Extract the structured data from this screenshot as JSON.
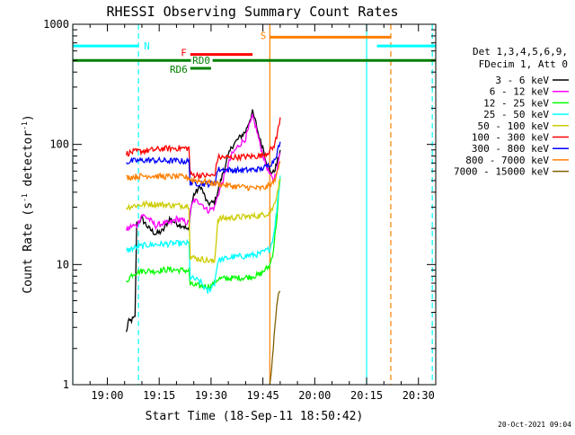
{
  "chart_data": {
    "type": "line",
    "title": "RHESSI Observing Summary Count Rates",
    "xlabel": "Start Time (18-Sep-11 18:50:42)",
    "ylabel_main": "Count Rate (s",
    "ylabel_sup1": "-1",
    "ylabel_mid": " detector",
    "ylabel_sup2": "-1",
    "ylabel_end": ")",
    "y_scale": "log",
    "ylim": [
      1,
      1000
    ],
    "xlim_minutes": [
      -10,
      95
    ],
    "x_ticks": [
      {
        "label": "19:00",
        "m": 0
      },
      {
        "label": "19:15",
        "m": 15
      },
      {
        "label": "19:30",
        "m": 30
      },
      {
        "label": "19:45",
        "m": 45
      },
      {
        "label": "20:00",
        "m": 60
      },
      {
        "label": "20:15",
        "m": 75
      },
      {
        "label": "20:30",
        "m": 90
      }
    ],
    "y_ticks": [
      {
        "label": "1",
        "v": 1
      },
      {
        "label": "10",
        "v": 10
      },
      {
        "label": "100",
        "v": 100
      },
      {
        "label": "1000",
        "v": 1000
      }
    ],
    "legend_header": [
      "Det 1,3,4,5,6,9,",
      "FDecim 1, Att 0"
    ],
    "legend_position": "right",
    "series": [
      {
        "name": "3 - 6 keV",
        "color": "#000000",
        "points": [
          [
            5.5,
            2.7
          ],
          [
            6,
            3.3
          ],
          [
            8,
            3.6
          ],
          [
            8.5,
            22
          ],
          [
            10,
            24
          ],
          [
            12,
            20
          ],
          [
            14,
            18
          ],
          [
            16,
            19
          ],
          [
            18,
            24
          ],
          [
            20,
            22
          ],
          [
            22,
            21
          ],
          [
            23.6,
            19
          ],
          [
            24,
            28
          ],
          [
            25,
            38
          ],
          [
            27,
            45
          ],
          [
            29,
            32
          ],
          [
            31,
            33
          ],
          [
            32,
            41
          ],
          [
            34,
            66
          ],
          [
            36,
            96
          ],
          [
            38,
            112
          ],
          [
            40,
            128
          ],
          [
            41,
            155
          ],
          [
            42,
            185
          ],
          [
            43,
            150
          ],
          [
            44,
            112
          ],
          [
            45,
            95
          ],
          [
            46,
            72
          ],
          [
            47,
            60
          ],
          [
            48,
            58
          ],
          [
            49,
            68
          ],
          [
            50,
            90
          ]
        ]
      },
      {
        "name": "6 - 12 keV",
        "color": "#ff00ff",
        "points": [
          [
            5.5,
            19
          ],
          [
            7,
            21
          ],
          [
            8.5,
            21
          ],
          [
            10,
            26
          ],
          [
            12,
            24
          ],
          [
            14,
            21
          ],
          [
            16,
            22
          ],
          [
            18,
            22
          ],
          [
            20,
            24
          ],
          [
            22,
            23
          ],
          [
            23.6,
            22
          ],
          [
            24,
            28
          ],
          [
            25,
            34
          ],
          [
            27,
            33
          ],
          [
            29,
            28
          ],
          [
            31,
            30
          ],
          [
            32,
            38
          ],
          [
            34,
            56
          ],
          [
            36,
            82
          ],
          [
            38,
            98
          ],
          [
            40,
            112
          ],
          [
            41,
            140
          ],
          [
            42,
            170
          ],
          [
            43,
            138
          ],
          [
            44,
            105
          ],
          [
            45,
            82
          ],
          [
            46,
            66
          ],
          [
            47,
            56
          ],
          [
            48,
            50
          ],
          [
            49,
            60
          ],
          [
            50,
            85
          ]
        ]
      },
      {
        "name": "12 - 25 keV",
        "color": "#00ff00",
        "points": [
          [
            5.5,
            7.2
          ],
          [
            7,
            8.2
          ],
          [
            8.5,
            8.7
          ],
          [
            11,
            8.9
          ],
          [
            14,
            8.8
          ],
          [
            16,
            9.0
          ],
          [
            18,
            9.1
          ],
          [
            20,
            9.0
          ],
          [
            23.6,
            8.9
          ],
          [
            24,
            6.8
          ],
          [
            27,
            6.6
          ],
          [
            30,
            6.6
          ],
          [
            32,
            7.6
          ],
          [
            36,
            7.7
          ],
          [
            40,
            7.8
          ],
          [
            44,
            8.2
          ],
          [
            47,
            9.8
          ],
          [
            48,
            13
          ],
          [
            49,
            24
          ],
          [
            50,
            52
          ]
        ]
      },
      {
        "name": "25 - 50 keV",
        "color": "#00ffff",
        "points": [
          [
            5.5,
            13
          ],
          [
            8,
            13.8
          ],
          [
            11,
            14.5
          ],
          [
            16,
            14.8
          ],
          [
            20,
            15
          ],
          [
            23.6,
            15
          ],
          [
            24,
            7.8
          ],
          [
            27,
            7.2
          ],
          [
            29,
            5.9
          ],
          [
            31,
            7.0
          ],
          [
            32,
            10.8
          ],
          [
            36,
            11.5
          ],
          [
            40,
            11.8
          ],
          [
            44,
            12.2
          ],
          [
            47,
            13.5
          ],
          [
            48,
            17
          ],
          [
            49,
            28
          ],
          [
            50,
            55
          ]
        ]
      },
      {
        "name": "50 - 100 keV",
        "color": "#cccc00",
        "points": [
          [
            5.5,
            30
          ],
          [
            8,
            31
          ],
          [
            12,
            32
          ],
          [
            16,
            31.5
          ],
          [
            20,
            31
          ],
          [
            23.6,
            31
          ],
          [
            24,
            11.5
          ],
          [
            28,
            11
          ],
          [
            31,
            10.5
          ],
          [
            32,
            24
          ],
          [
            36,
            24.5
          ],
          [
            40,
            25
          ],
          [
            44,
            25.5
          ],
          [
            47,
            27
          ],
          [
            48,
            30
          ],
          [
            49,
            38
          ],
          [
            50,
            52
          ]
        ]
      },
      {
        "name": "100 - 300 keV",
        "color": "#ff0000",
        "points": [
          [
            5.5,
            84
          ],
          [
            8,
            87
          ],
          [
            12,
            89
          ],
          [
            16,
            92
          ],
          [
            20,
            93
          ],
          [
            23.6,
            93
          ],
          [
            24,
            56
          ],
          [
            28,
            55
          ],
          [
            31,
            55
          ],
          [
            32,
            78
          ],
          [
            36,
            78
          ],
          [
            40,
            79
          ],
          [
            44,
            80
          ],
          [
            46,
            84
          ],
          [
            48,
            94
          ],
          [
            49,
            115
          ],
          [
            50,
            168
          ]
        ]
      },
      {
        "name": "300 - 800 keV",
        "color": "#0000ff",
        "points": [
          [
            5.5,
            71
          ],
          [
            8,
            73
          ],
          [
            12,
            74
          ],
          [
            16,
            73
          ],
          [
            20,
            73
          ],
          [
            23.6,
            72
          ],
          [
            24,
            48
          ],
          [
            28,
            47
          ],
          [
            31,
            47
          ],
          [
            32,
            62
          ],
          [
            36,
            61
          ],
          [
            40,
            61
          ],
          [
            44,
            62
          ],
          [
            46,
            65
          ],
          [
            48,
            72
          ],
          [
            49,
            84
          ],
          [
            50,
            105
          ]
        ]
      },
      {
        "name": "800 - 7000 keV",
        "color": "#ff7f00",
        "points": [
          [
            5.5,
            53
          ],
          [
            8,
            54
          ],
          [
            12,
            55
          ],
          [
            16,
            54
          ],
          [
            20,
            54
          ],
          [
            23.6,
            53
          ],
          [
            24,
            51
          ],
          [
            28,
            49
          ],
          [
            32,
            47
          ],
          [
            36,
            45
          ],
          [
            40,
            44
          ],
          [
            44,
            43
          ],
          [
            46,
            44
          ],
          [
            48,
            48
          ],
          [
            49,
            56
          ],
          [
            50,
            72
          ]
        ]
      },
      {
        "name": "7000 - 15000 keV",
        "color": "#806000",
        "points": [
          [
            47,
            1
          ],
          [
            47.5,
            1.4
          ],
          [
            48,
            2.1
          ],
          [
            48.5,
            3.2
          ],
          [
            49,
            4.4
          ],
          [
            49.5,
            5.5
          ],
          [
            50,
            6.0
          ]
        ]
      }
    ],
    "state_bars": [
      {
        "label": "N",
        "color": "#00ffff",
        "level": 660,
        "segments": [
          [
            -10,
            9
          ],
          [
            78,
            95
          ]
        ]
      },
      {
        "label": "F",
        "color": "#ff0000",
        "level": 560,
        "segments": [
          [
            24,
            42
          ]
        ]
      },
      {
        "label": "S",
        "color": "#ff7f00",
        "level": 780,
        "segments": [
          [
            47,
            82
          ]
        ]
      },
      {
        "label": "RD0",
        "color": "#008000",
        "level": 500,
        "segments": [
          [
            -10,
            95
          ]
        ]
      },
      {
        "label": "RD6",
        "color": "#008000",
        "level": 430,
        "segments": [
          [
            24,
            30
          ]
        ]
      }
    ],
    "vertical_lines": [
      {
        "m": -10,
        "color": "#00ffff",
        "style": "solid"
      },
      {
        "m": 9,
        "color": "#00ffff",
        "style": "dashed"
      },
      {
        "m": 47,
        "color": "#ff7f00",
        "style": "solid"
      },
      {
        "m": 75,
        "color": "#00ffff",
        "style": "solid"
      },
      {
        "m": 82,
        "color": "#ff7f00",
        "style": "dashed"
      },
      {
        "m": 94,
        "color": "#00ffff",
        "style": "dashed"
      }
    ],
    "timestamp": "20-Oct-2021 09:04"
  }
}
